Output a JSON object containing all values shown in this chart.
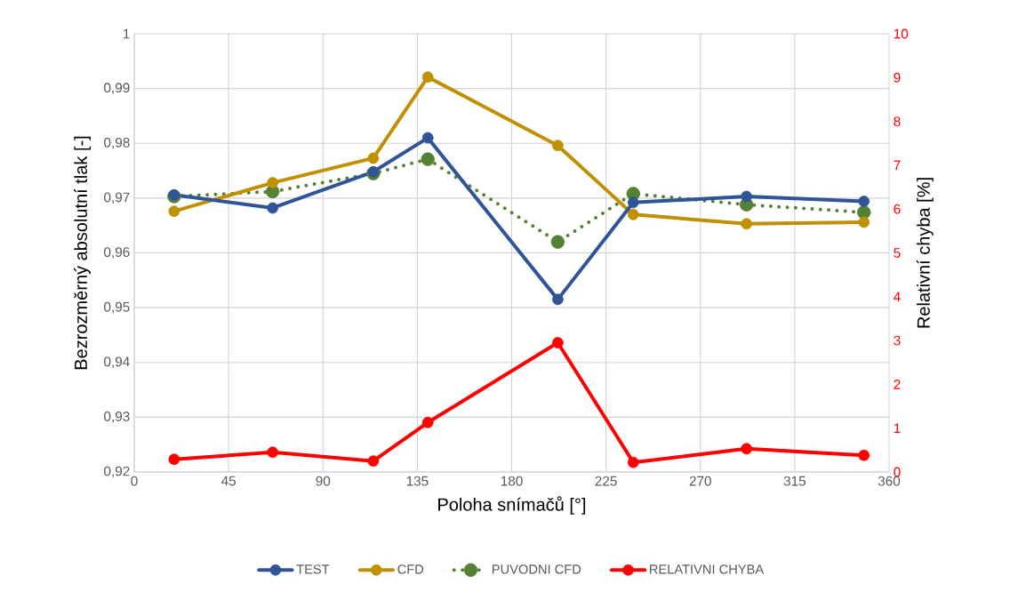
{
  "chart_data": {
    "type": "line",
    "xlabel": "Poloha snímačů [°]",
    "ylabel": "Bezrozměrný absolutní tlak [-]",
    "y2label": "Relativní chyba [%]",
    "x": [
      19,
      66,
      114,
      140,
      202,
      238,
      292,
      348
    ],
    "series": [
      {
        "name": "TEST",
        "color": "#2f5597",
        "line_style": "solid",
        "values": [
          0.9706,
          0.9682,
          0.9748,
          0.981,
          0.9515,
          0.9692,
          0.9703,
          0.9694
        ]
      },
      {
        "name": "CFD",
        "color": "#bf9000",
        "line_style": "solid",
        "values": [
          0.9676,
          0.9728,
          0.9773,
          0.9921,
          0.9796,
          0.967,
          0.9653,
          0.9656
        ]
      },
      {
        "name": "PUVODNI CFD",
        "color": "#548235",
        "line_style": "dotted",
        "values": [
          0.9703,
          0.9712,
          0.9745,
          0.9771,
          0.962,
          0.9708,
          0.9688,
          0.9674
        ]
      },
      {
        "name": "RELATIVNI CHYBA",
        "color": "#ff0000",
        "line_style": "solid",
        "axis": "y2",
        "values": [
          0.29,
          0.45,
          0.25,
          1.13,
          2.95,
          0.22,
          0.53,
          0.38
        ]
      }
    ],
    "xlim": [
      0,
      360
    ],
    "xticks": [
      0,
      45,
      90,
      135,
      180,
      225,
      270,
      315,
      360
    ],
    "ylim": [
      0.92,
      1
    ],
    "yticks": [
      {
        "value": 0.92,
        "label": "0,92"
      },
      {
        "value": 0.93,
        "label": "0,93"
      },
      {
        "value": 0.94,
        "label": "0,94"
      },
      {
        "value": 0.95,
        "label": "0,95"
      },
      {
        "value": 0.96,
        "label": "0,96"
      },
      {
        "value": 0.97,
        "label": "0,97"
      },
      {
        "value": 0.98,
        "label": "0,98"
      },
      {
        "value": 0.99,
        "label": "0,99"
      },
      1
    ],
    "y2lim": [
      0,
      10
    ],
    "y2ticks": [
      0,
      1,
      2,
      3,
      4,
      5,
      6,
      7,
      8,
      9,
      10
    ],
    "grid": true,
    "legend": "bottom",
    "marker": "circle"
  }
}
